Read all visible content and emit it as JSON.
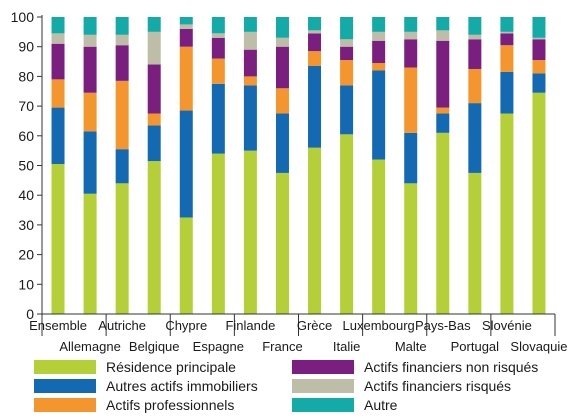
{
  "chart_data": {
    "type": "bar",
    "stacked": true,
    "ylim": [
      0,
      100
    ],
    "yticks": [
      0,
      10,
      20,
      30,
      40,
      50,
      60,
      70,
      80,
      90,
      100
    ],
    "grid": false,
    "legend_position": "bottom",
    "categories": [
      "Ensemble",
      "Allemagne",
      "Autriche",
      "Belgique",
      "Chypre",
      "Espagne",
      "Finlande",
      "France",
      "Grèce",
      "Italie",
      "Luxembourg",
      "Malte",
      "Pays-Bas",
      "Portugal",
      "Slovénie",
      "Slovaquie"
    ],
    "series": [
      {
        "name": "Résidence principale",
        "color": "#b5cf38",
        "values": [
          50.5,
          40.5,
          44,
          51.5,
          32.5,
          54,
          55,
          47.5,
          56,
          60.5,
          52,
          44,
          61,
          47.5,
          67.5,
          74.5
        ]
      },
      {
        "name": "Autres actifs immobiliers",
        "color": "#1469b3",
        "values": [
          19,
          21,
          11.5,
          12,
          36,
          23.5,
          22,
          20,
          27.5,
          16.5,
          30,
          17,
          6.5,
          23.5,
          14,
          6.5
        ]
      },
      {
        "name": "Actifs professionnels",
        "color": "#f4962d",
        "values": [
          9.5,
          13,
          23,
          4,
          21.5,
          8.5,
          3,
          8.5,
          5,
          8.5,
          2.5,
          22,
          2,
          11.5,
          9,
          4.5
        ]
      },
      {
        "name": "Actifs financiers non risqués",
        "color": "#7a1f80",
        "values": [
          12,
          15.5,
          12,
          16.5,
          6,
          7,
          9,
          14,
          6,
          4.5,
          7.5,
          9.5,
          22.5,
          10,
          4,
          7
        ]
      },
      {
        "name": "Actifs financiers risqués",
        "color": "#bdbda8",
        "values": [
          3.5,
          4,
          3.5,
          11,
          1.5,
          1.5,
          6,
          3,
          1,
          2.5,
          3,
          2.5,
          3.5,
          1.5,
          0.5,
          0.5
        ]
      },
      {
        "name": "Autre",
        "color": "#14aaa8",
        "values": [
          5.5,
          6,
          6,
          5,
          2.5,
          5.5,
          5,
          7,
          4.5,
          7.5,
          5,
          5,
          4.5,
          6,
          5,
          7
        ]
      }
    ]
  }
}
